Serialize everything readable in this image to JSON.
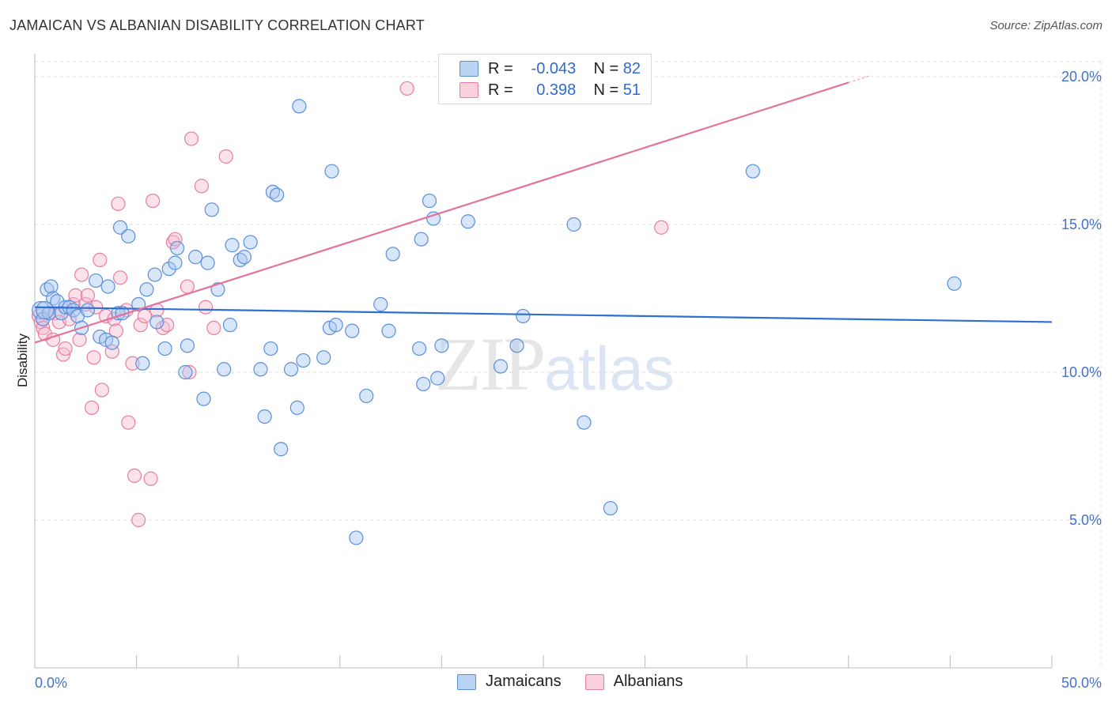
{
  "title": "JAMAICAN VS ALBANIAN DISABILITY CORRELATION CHART",
  "source": "Source: ZipAtlas.com",
  "watermark": {
    "zip": "ZIP",
    "atlas": "atlas"
  },
  "legend": {
    "rows": [
      {
        "r_label": "R =",
        "r_value": "-0.043",
        "n_label": "N =",
        "n_value": "82"
      },
      {
        "r_label": "R =",
        "r_value": "0.398",
        "n_label": "N =",
        "n_value": "51"
      }
    ]
  },
  "colors": {
    "blue_fill": "#a9c8f2",
    "blue_stroke": "#5b8fd8",
    "blue_line": "#2e6fd1",
    "pink_fill": "#f7bcd0",
    "pink_stroke": "#e87da3",
    "pink_line": "#e4739c",
    "grid": "#dddddd",
    "tick_label": "#4472c4"
  },
  "chart_data": {
    "type": "scatter",
    "title": "JAMAICAN VS ALBANIAN DISABILITY CORRELATION CHART",
    "xlabel": "",
    "ylabel": "Disability",
    "xlim": [
      0,
      50
    ],
    "ylim": [
      0,
      20.5
    ],
    "x_tick_labels": [
      "0.0%",
      "50.0%"
    ],
    "y_ticks": [
      5,
      10,
      15,
      20
    ],
    "y_tick_labels": [
      "5.0%",
      "10.0%",
      "15.0%",
      "20.0%"
    ],
    "series": [
      {
        "name": "Jamaicans",
        "r": -0.043,
        "n": 82,
        "trend": {
          "x0": 0,
          "y0": 12.2,
          "x1": 50,
          "y1": 11.7
        },
        "points": [
          [
            0.3,
            12.1
          ],
          [
            0.4,
            11.8
          ],
          [
            0.6,
            12.8
          ],
          [
            0.7,
            12.0
          ],
          [
            0.8,
            12.9
          ],
          [
            0.9,
            12.5
          ],
          [
            1.1,
            12.4
          ],
          [
            1.3,
            12.0
          ],
          [
            1.5,
            12.2
          ],
          [
            1.7,
            12.2
          ],
          [
            1.9,
            12.1
          ],
          [
            2.1,
            11.9
          ],
          [
            2.3,
            11.5
          ],
          [
            2.6,
            12.1
          ],
          [
            3.0,
            13.1
          ],
          [
            3.2,
            11.2
          ],
          [
            3.5,
            11.1
          ],
          [
            3.6,
            12.9
          ],
          [
            3.8,
            11.0
          ],
          [
            4.1,
            12.0
          ],
          [
            4.2,
            14.9
          ],
          [
            4.3,
            12.0
          ],
          [
            4.6,
            14.6
          ],
          [
            5.1,
            12.3
          ],
          [
            5.3,
            10.3
          ],
          [
            5.5,
            12.8
          ],
          [
            5.9,
            13.3
          ],
          [
            6.0,
            11.7
          ],
          [
            6.4,
            10.8
          ],
          [
            6.6,
            13.5
          ],
          [
            6.9,
            13.7
          ],
          [
            7.0,
            14.2
          ],
          [
            7.4,
            10.0
          ],
          [
            7.5,
            10.9
          ],
          [
            7.9,
            13.9
          ],
          [
            8.3,
            9.1
          ],
          [
            8.5,
            13.7
          ],
          [
            8.7,
            15.5
          ],
          [
            9.0,
            12.8
          ],
          [
            9.3,
            10.1
          ],
          [
            9.6,
            11.6
          ],
          [
            9.7,
            14.3
          ],
          [
            10.1,
            13.8
          ],
          [
            10.3,
            13.9
          ],
          [
            10.6,
            14.4
          ],
          [
            11.1,
            10.1
          ],
          [
            11.3,
            8.5
          ],
          [
            11.6,
            10.8
          ],
          [
            11.7,
            16.1
          ],
          [
            11.9,
            16.0
          ],
          [
            12.1,
            7.4
          ],
          [
            12.6,
            10.1
          ],
          [
            12.9,
            8.8
          ],
          [
            13.0,
            19.0
          ],
          [
            13.2,
            10.4
          ],
          [
            14.2,
            10.5
          ],
          [
            14.5,
            11.5
          ],
          [
            14.6,
            16.8
          ],
          [
            14.8,
            11.6
          ],
          [
            15.8,
            4.4
          ],
          [
            15.6,
            11.4
          ],
          [
            16.3,
            9.2
          ],
          [
            17.0,
            12.3
          ],
          [
            17.4,
            11.4
          ],
          [
            17.6,
            14.0
          ],
          [
            18.9,
            10.8
          ],
          [
            19.0,
            14.5
          ],
          [
            19.1,
            9.6
          ],
          [
            19.4,
            15.8
          ],
          [
            19.6,
            15.2
          ],
          [
            19.8,
            9.8
          ],
          [
            20.0,
            10.9
          ],
          [
            21.3,
            15.1
          ],
          [
            22.9,
            10.2
          ],
          [
            23.7,
            10.9
          ],
          [
            24.0,
            11.9
          ],
          [
            26.5,
            15.0
          ],
          [
            27.0,
            8.3
          ],
          [
            28.3,
            5.4
          ],
          [
            35.3,
            16.8
          ],
          [
            45.2,
            13.0
          ],
          [
            0.5,
            12.1
          ]
        ]
      },
      {
        "name": "Albanians",
        "r": 0.398,
        "n": 51,
        "trend": {
          "x0": 0,
          "y0": 11.0,
          "x1": 40,
          "y1": 19.8
        },
        "points": [
          [
            0.2,
            11.9
          ],
          [
            0.3,
            11.7
          ],
          [
            0.4,
            11.5
          ],
          [
            0.5,
            11.3
          ],
          [
            0.7,
            12.0
          ],
          [
            0.9,
            11.1
          ],
          [
            1.0,
            12.0
          ],
          [
            1.2,
            11.7
          ],
          [
            1.4,
            10.6
          ],
          [
            1.5,
            10.8
          ],
          [
            1.7,
            11.8
          ],
          [
            1.9,
            12.3
          ],
          [
            2.0,
            12.6
          ],
          [
            2.2,
            11.1
          ],
          [
            2.3,
            13.3
          ],
          [
            2.5,
            12.3
          ],
          [
            2.6,
            12.6
          ],
          [
            2.8,
            8.8
          ],
          [
            2.9,
            10.5
          ],
          [
            3.0,
            12.2
          ],
          [
            3.2,
            13.8
          ],
          [
            3.3,
            9.4
          ],
          [
            3.5,
            11.9
          ],
          [
            3.8,
            10.7
          ],
          [
            3.9,
            11.8
          ],
          [
            4.0,
            11.4
          ],
          [
            4.1,
            15.7
          ],
          [
            4.2,
            13.2
          ],
          [
            4.5,
            12.1
          ],
          [
            4.6,
            8.3
          ],
          [
            4.8,
            10.3
          ],
          [
            4.9,
            6.5
          ],
          [
            5.1,
            5.0
          ],
          [
            5.2,
            11.6
          ],
          [
            5.4,
            11.9
          ],
          [
            5.7,
            6.4
          ],
          [
            5.8,
            15.8
          ],
          [
            6.0,
            12.1
          ],
          [
            6.3,
            11.5
          ],
          [
            6.5,
            11.6
          ],
          [
            6.8,
            14.4
          ],
          [
            6.9,
            14.5
          ],
          [
            7.5,
            12.9
          ],
          [
            7.6,
            10.0
          ],
          [
            7.7,
            17.9
          ],
          [
            8.2,
            16.3
          ],
          [
            8.4,
            12.2
          ],
          [
            8.8,
            11.5
          ],
          [
            9.4,
            17.3
          ],
          [
            18.3,
            19.6
          ],
          [
            30.8,
            14.9
          ]
        ]
      }
    ]
  }
}
